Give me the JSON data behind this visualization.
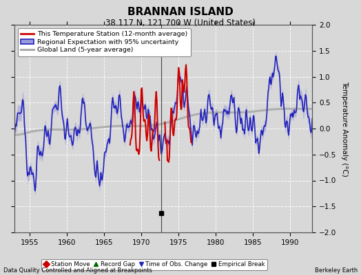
{
  "title": "BRANNAN ISLAND",
  "subtitle": "38.117 N, 121.700 W (United States)",
  "ylabel": "Temperature Anomaly (°C)",
  "xlabel_bottom_left": "Data Quality Controlled and Aligned at Breakpoints",
  "xlabel_bottom_right": "Berkeley Earth",
  "xlim": [
    1953.0,
    1993.0
  ],
  "ylim": [
    -2,
    2
  ],
  "yticks": [
    -2,
    -1.5,
    -1,
    -0.5,
    0,
    0.5,
    1,
    1.5,
    2
  ],
  "xticks": [
    1955,
    1960,
    1965,
    1970,
    1975,
    1980,
    1985,
    1990
  ],
  "bg_color": "#d8d8d8",
  "plot_bg_color": "#d8d8d8",
  "grid_color": "#ffffff",
  "regional_line_color": "#2222bb",
  "regional_fill_color": "#9999dd",
  "station_line_color": "#cc0000",
  "global_line_color": "#aaaaaa",
  "empirical_break_x": 1972.75,
  "empirical_break_y": -1.63,
  "legend_station": "This Temperature Station (12-month average)",
  "legend_regional": "Regional Expectation with 95% uncertainty",
  "legend_global": "Global Land (5-year average)",
  "bottom_legend": [
    {
      "label": "Station Move",
      "color": "#cc0000",
      "marker": "D"
    },
    {
      "label": "Record Gap",
      "color": "#006600",
      "marker": "^"
    },
    {
      "label": "Time of Obs. Change",
      "color": "#2222bb",
      "marker": "v"
    },
    {
      "label": "Empirical Break",
      "color": "#000000",
      "marker": "s"
    }
  ]
}
